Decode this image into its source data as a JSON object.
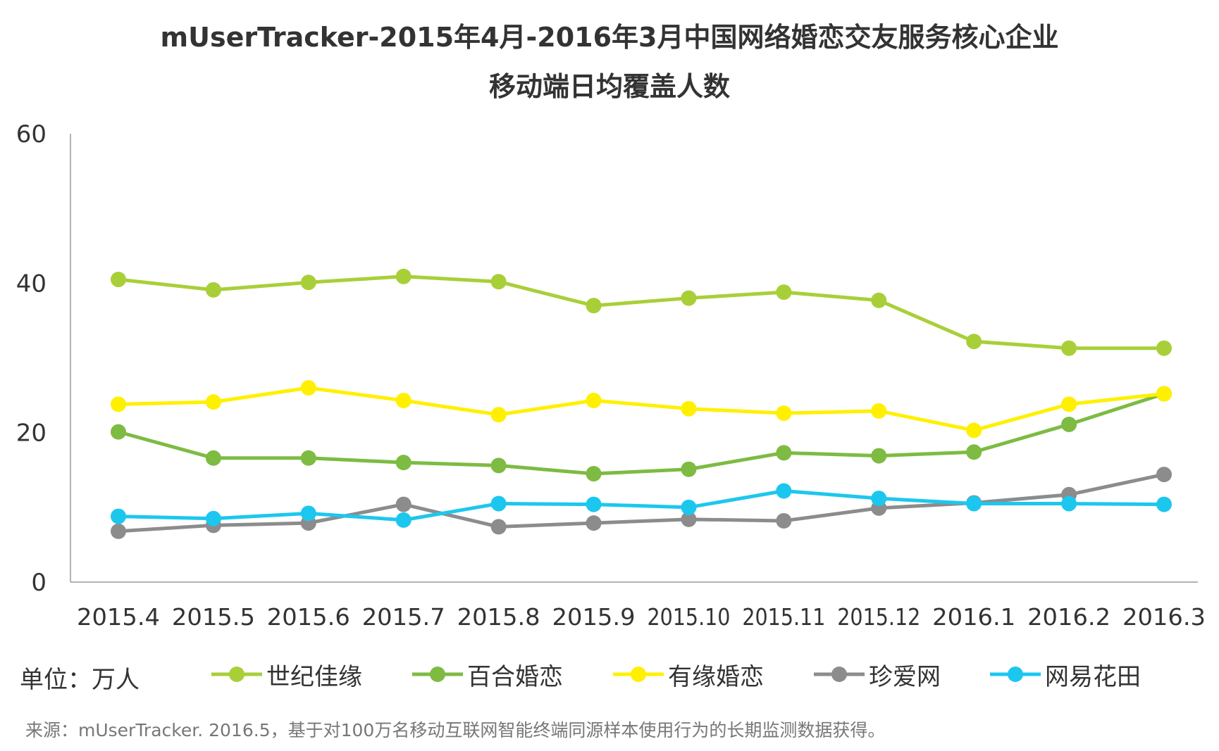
{
  "chart_data": {
    "type": "line",
    "title": "mUserTracker-2015年4月-2016年3月中国网络婚恋交友服务核心企业",
    "subtitle": "移动端日均覆盖人数",
    "unit_label": "单位：万人",
    "source": "来源：mUserTracker. 2016.5，基于对100万名移动互联网智能终端同源样本使用行为的长期监测数据获得。",
    "x": [
      "2015.4",
      "2015.5",
      "2015.6",
      "2015.7",
      "2015.8",
      "2015.9",
      "2015.10",
      "2015.11",
      "2015.12",
      "2016.1",
      "2016.2",
      "2016.3"
    ],
    "y_ticks": [
      "0",
      "20",
      "40",
      "60"
    ],
    "ylim": [
      0,
      60
    ],
    "legend_position": "bottom",
    "grid": false,
    "series": [
      {
        "name": "世纪佳缘",
        "color": "#A9CF38",
        "values": [
          40.5,
          39.1,
          40.1,
          40.9,
          40.2,
          37.0,
          38.0,
          38.8,
          37.7,
          32.2,
          31.3,
          31.3
        ]
      },
      {
        "name": "百合婚恋",
        "color": "#7DBB42",
        "values": [
          20.1,
          16.6,
          16.6,
          16.0,
          15.6,
          14.5,
          15.1,
          17.3,
          16.9,
          17.4,
          21.1,
          25.2
        ]
      },
      {
        "name": "有缘婚恋",
        "color": "#FFF000",
        "values": [
          23.8,
          24.1,
          26.0,
          24.3,
          22.4,
          24.3,
          23.2,
          22.6,
          22.9,
          20.3,
          23.8,
          25.2
        ]
      },
      {
        "name": "珍爱网",
        "color": "#8C8C8C",
        "values": [
          6.8,
          7.6,
          7.9,
          10.4,
          7.4,
          7.9,
          8.4,
          8.2,
          9.9,
          10.6,
          11.7,
          14.4
        ]
      },
      {
        "name": "网易花田",
        "color": "#1CC7EE",
        "values": [
          8.8,
          8.5,
          9.2,
          8.3,
          10.5,
          10.4,
          10.0,
          12.2,
          11.2,
          10.5,
          10.5,
          10.4
        ]
      }
    ]
  }
}
